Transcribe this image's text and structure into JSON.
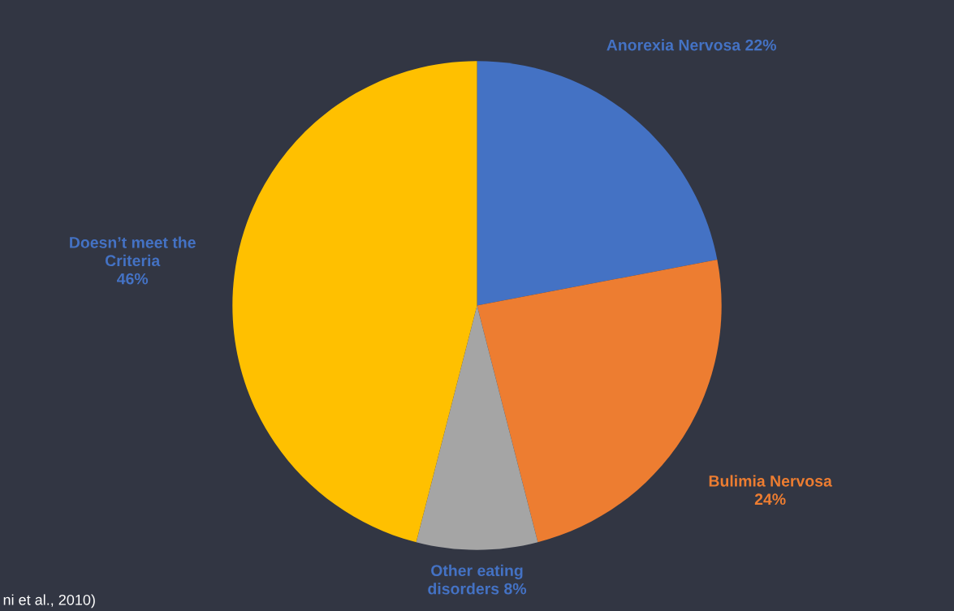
{
  "chart_data": {
    "type": "pie",
    "categories": [
      "Anorexia Nervosa",
      "Bulimia Nervosa",
      "Other eating\ndisorders",
      "Doesn’t meet the\nCriteria"
    ],
    "values": [
      22,
      24,
      8,
      46
    ],
    "colors": [
      "#4472c4",
      "#ed7d31",
      "#a5a5a5",
      "#ffc000"
    ],
    "value_labels": [
      "22%",
      "24%",
      "8%",
      "46%"
    ],
    "annotations": [
      "ni et al., 2010)"
    ]
  }
}
